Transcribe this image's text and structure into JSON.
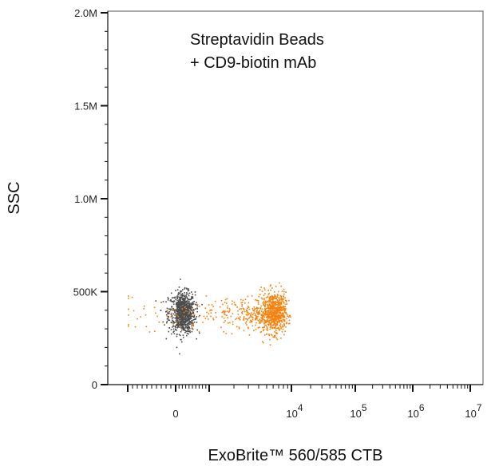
{
  "chart_data": {
    "type": "scatter",
    "title": "",
    "annotation_lines": [
      "Streptavidin Beads",
      "+ CD9-biotin mAb"
    ],
    "xlabel": "ExoBrite™ 560/585 CTB",
    "ylabel": "SSC",
    "x_scale": "biexponential",
    "y_scale": "linear",
    "ylim": [
      0,
      2000000
    ],
    "y_ticks": [
      {
        "value": 0,
        "label": "0"
      },
      {
        "value": 500000,
        "label": "500K"
      },
      {
        "value": 1000000,
        "label": "1.0M"
      },
      {
        "value": 1500000,
        "label": "1.5M"
      },
      {
        "value": 2000000,
        "label": "2.0M"
      }
    ],
    "x_ticks": [
      {
        "value": 0,
        "label": "0",
        "exp": ""
      },
      {
        "value": 10000,
        "label": "10",
        "exp": "4"
      },
      {
        "value": 100000,
        "label": "10",
        "exp": "5"
      },
      {
        "value": 1000000,
        "label": "10",
        "exp": "6"
      },
      {
        "value": 10000000,
        "label": "10",
        "exp": "7"
      }
    ],
    "grid": false,
    "legend": "none",
    "series": [
      {
        "color": "#4d4d4d",
        "clusters": [
          {
            "x_center": 200,
            "x_spread": 180,
            "y_center": 390000,
            "y_spread": 55000,
            "count": 900
          }
        ]
      },
      {
        "color": "#f5820d",
        "clusters": [
          {
            "x_center": 6000,
            "x_spread": 1200,
            "y_center": 390000,
            "y_spread": 55000,
            "count": 700
          },
          {
            "x_center": 2500,
            "x_spread": 1800,
            "y_center": 385000,
            "y_spread": 45000,
            "count": 260
          }
        ]
      }
    ]
  }
}
